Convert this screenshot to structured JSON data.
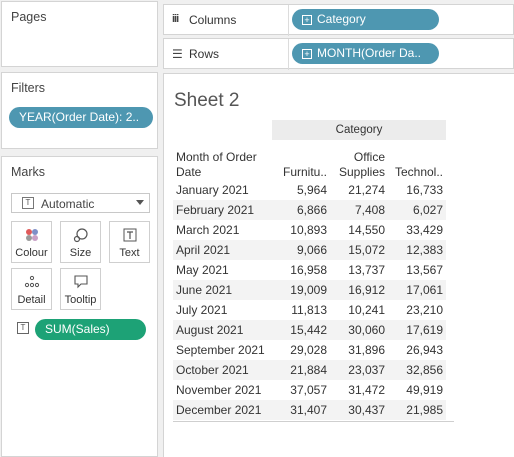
{
  "pages": {
    "title": "Pages"
  },
  "filters": {
    "title": "Filters",
    "pill": "YEAR(Order Date): 2.."
  },
  "marks": {
    "title": "Marks",
    "type_select": "Automatic",
    "cards": [
      {
        "label": "Colour",
        "icon": "colour-icon"
      },
      {
        "label": "Size",
        "icon": "size-icon"
      },
      {
        "label": "Text",
        "icon": "text-icon"
      },
      {
        "label": "Detail",
        "icon": "detail-icon"
      },
      {
        "label": "Tooltip",
        "icon": "tooltip-icon"
      }
    ],
    "field_pill": "SUM(Sales)"
  },
  "shelves": {
    "columns": {
      "label": "Columns",
      "pill": "Category"
    },
    "rows": {
      "label": "Rows",
      "pill": "MONTH(Order Da.."
    }
  },
  "sheet": {
    "title": "Sheet 2",
    "column_header": "Category",
    "row_header_line1": "Month of Order",
    "row_header_line2": "Date",
    "categories": [
      {
        "line1": "",
        "line2": "Furnitu.."
      },
      {
        "line1": "Office",
        "line2": "Supplies"
      },
      {
        "line1": "",
        "line2": "Technol.."
      }
    ],
    "rows": [
      {
        "month": "January 2021",
        "values": [
          "5,964",
          "21,274",
          "16,733"
        ]
      },
      {
        "month": "February 2021",
        "values": [
          "6,866",
          "7,408",
          "6,027"
        ]
      },
      {
        "month": "March 2021",
        "values": [
          "10,893",
          "14,550",
          "33,429"
        ]
      },
      {
        "month": "April 2021",
        "values": [
          "9,066",
          "15,072",
          "12,383"
        ]
      },
      {
        "month": "May 2021",
        "values": [
          "16,958",
          "13,737",
          "13,567"
        ]
      },
      {
        "month": "June 2021",
        "values": [
          "19,009",
          "16,912",
          "17,061"
        ]
      },
      {
        "month": "July 2021",
        "values": [
          "11,813",
          "10,241",
          "23,210"
        ]
      },
      {
        "month": "August 2021",
        "values": [
          "15,442",
          "30,060",
          "17,619"
        ]
      },
      {
        "month": "September 2021",
        "values": [
          "29,028",
          "31,896",
          "26,943"
        ]
      },
      {
        "month": "October 2021",
        "values": [
          "21,884",
          "23,037",
          "32,856"
        ]
      },
      {
        "month": "November 2021",
        "values": [
          "37,057",
          "31,472",
          "49,919"
        ]
      },
      {
        "month": "December 2021",
        "values": [
          "31,407",
          "30,437",
          "21,985"
        ]
      }
    ]
  }
}
